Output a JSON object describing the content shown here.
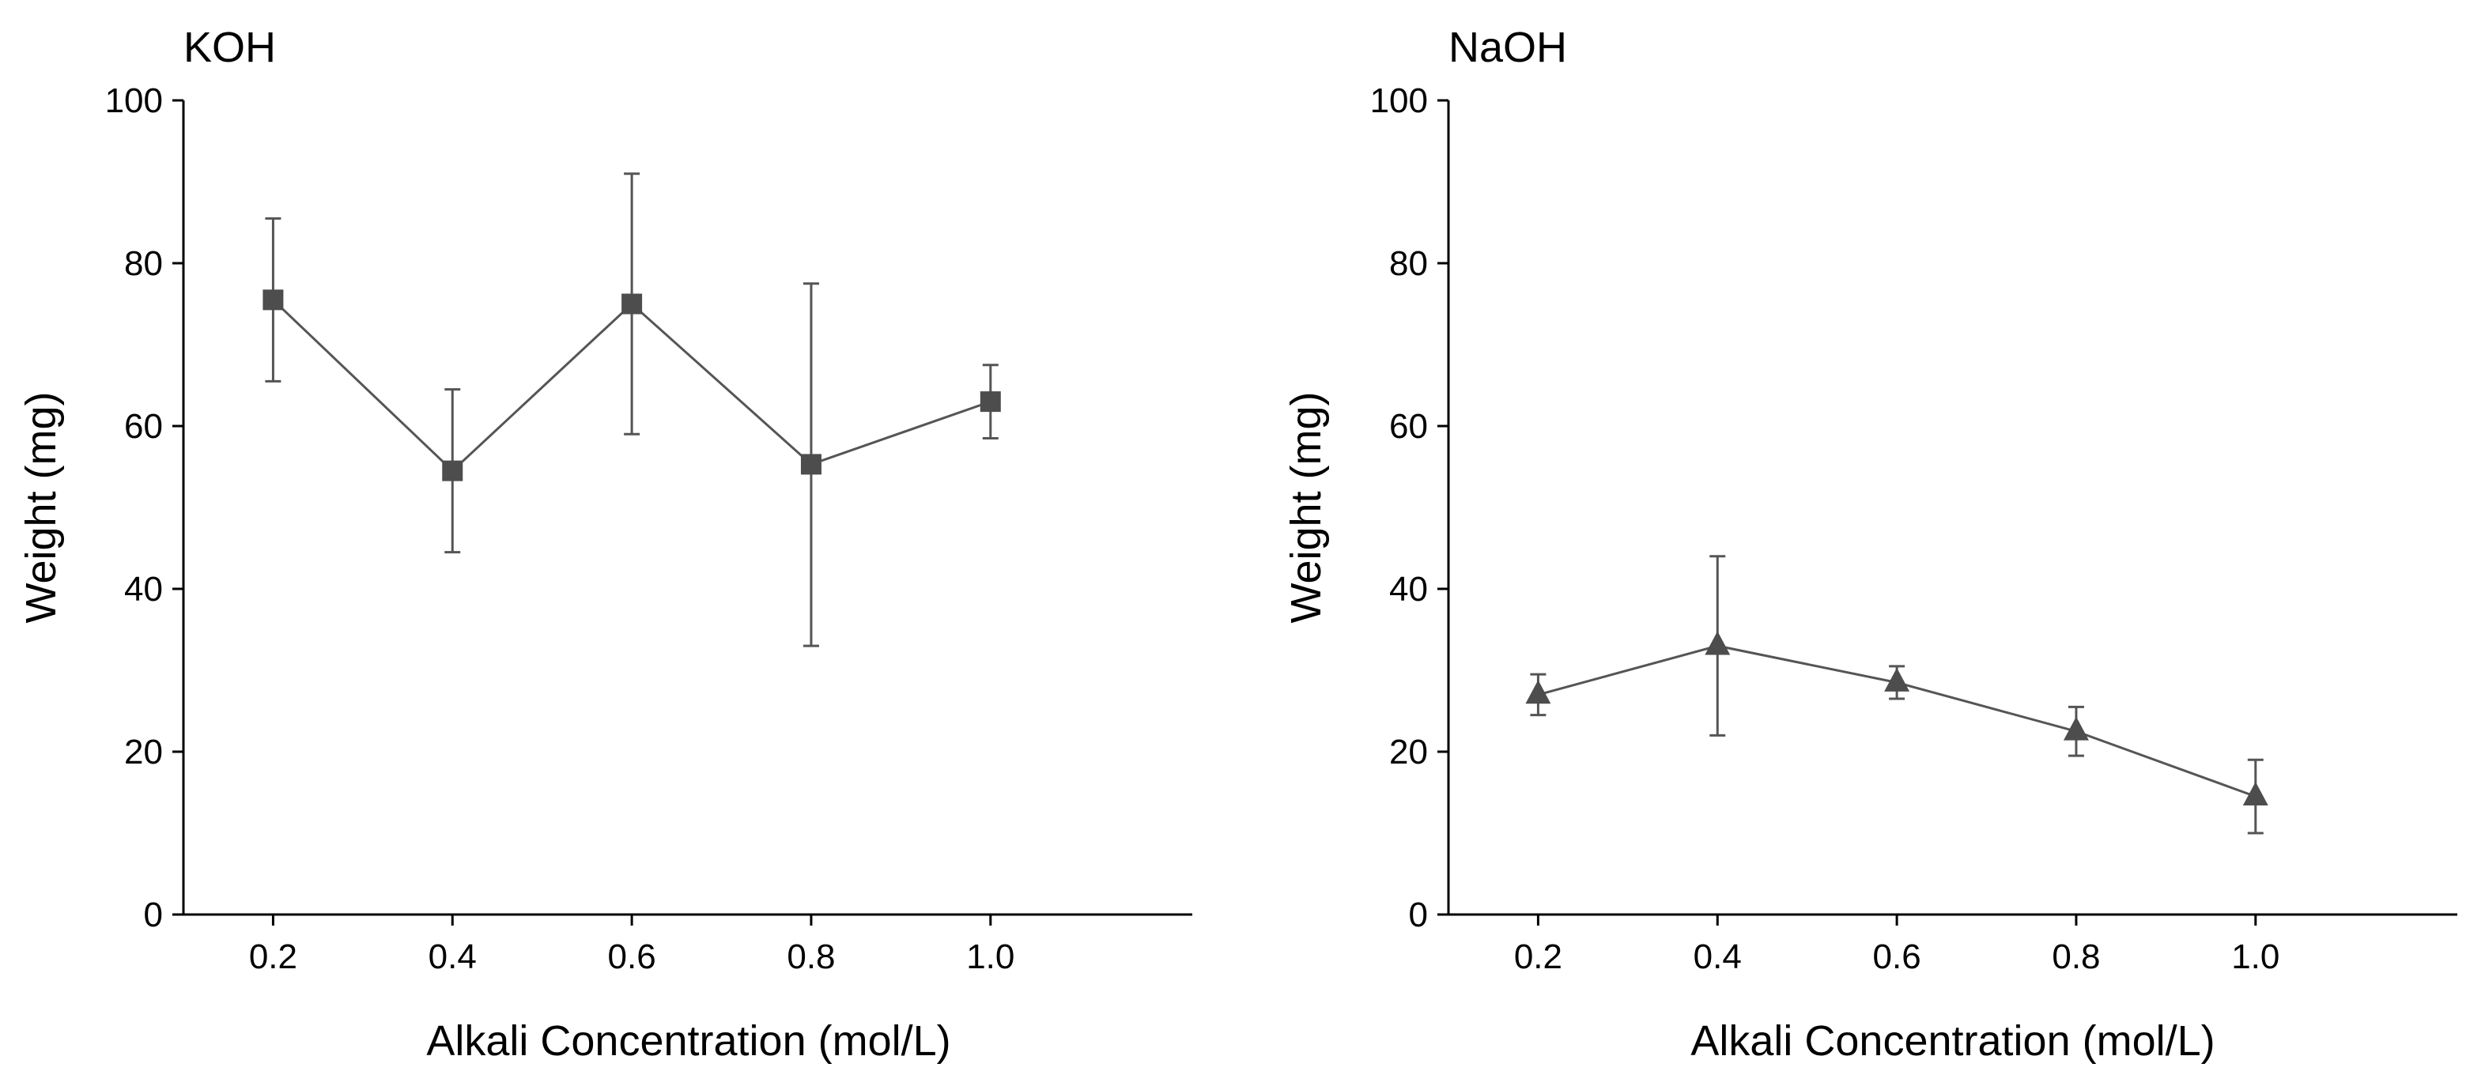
{
  "chart_data": [
    {
      "type": "line",
      "title": "KOH",
      "xlabel": "Alkali Concentration (mol/L)",
      "ylabel": "Weight (mg)",
      "xlim": [
        0.1,
        1.225
      ],
      "ylim": [
        0,
        100
      ],
      "x_ticks": [
        "0.2",
        "0.4",
        "0.6",
        "0.8",
        "1.0"
      ],
      "y_ticks": [
        "0",
        "20",
        "40",
        "60",
        "80",
        "100"
      ],
      "marker": "square",
      "color": "#4d4d4d",
      "points": [
        {
          "x": 0.2,
          "y": 75.5,
          "err_low": 65.5,
          "err_high": 85.5
        },
        {
          "x": 0.4,
          "y": 54.5,
          "err_low": 44.5,
          "err_high": 64.5
        },
        {
          "x": 0.6,
          "y": 75.0,
          "err_low": 59.0,
          "err_high": 91.0
        },
        {
          "x": 0.8,
          "y": 55.3,
          "err_low": 33.0,
          "err_high": 77.5
        },
        {
          "x": 1.0,
          "y": 63.0,
          "err_low": 58.5,
          "err_high": 67.5
        }
      ]
    },
    {
      "type": "line",
      "title": "NaOH",
      "xlabel": "Alkali Concentration (mol/L)",
      "ylabel": "Weight (mg)",
      "xlim": [
        0.1,
        1.225
      ],
      "ylim": [
        0,
        100
      ],
      "x_ticks": [
        "0.2",
        "0.4",
        "0.6",
        "0.8",
        "1.0"
      ],
      "y_ticks": [
        "0",
        "20",
        "40",
        "60",
        "80",
        "100"
      ],
      "marker": "triangle",
      "color": "#4d4d4d",
      "points": [
        {
          "x": 0.2,
          "y": 27.0,
          "err_low": 24.5,
          "err_high": 29.5
        },
        {
          "x": 0.4,
          "y": 33.0,
          "err_low": 22.0,
          "err_high": 44.0
        },
        {
          "x": 0.6,
          "y": 28.5,
          "err_low": 26.5,
          "err_high": 30.5
        },
        {
          "x": 0.8,
          "y": 22.5,
          "err_low": 19.5,
          "err_high": 25.5
        },
        {
          "x": 1.0,
          "y": 14.5,
          "err_low": 10.0,
          "err_high": 19.0
        }
      ]
    }
  ]
}
